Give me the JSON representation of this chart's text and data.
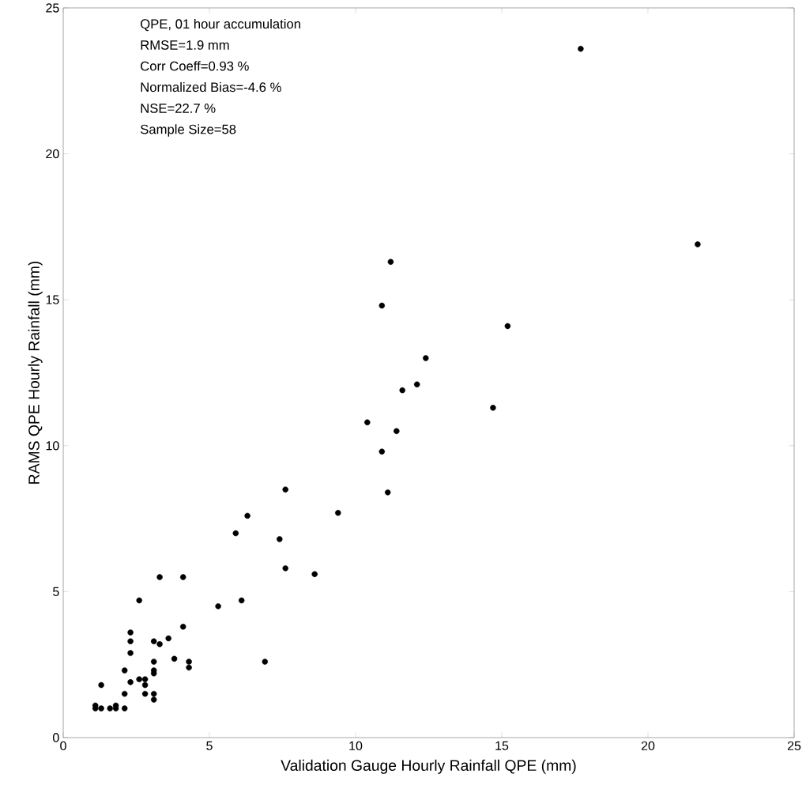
{
  "chart_data": {
    "type": "scatter",
    "xlabel": "Validation Gauge Hourly Rainfall QPE (mm)",
    "ylabel": "RAMS QPE Hourly Rainfall (mm)",
    "annotations": [
      "QPE, 01 hour accumulation",
      "RMSE=1.9 mm",
      "Corr Coeff=0.93 %",
      "Normalized Bias=-4.6 %",
      "NSE=22.7 %",
      "Sample Size=58"
    ],
    "x": [
      17.7,
      21.7,
      11.2,
      10.9,
      15.2,
      12.4,
      12.1,
      11.6,
      14.7,
      10.4,
      11.4,
      10.9,
      7.6,
      11.1,
      6.3,
      5.9,
      9.4,
      7.4,
      7.6,
      8.6,
      6.1,
      3.3,
      4.1,
      2.6,
      5.3,
      4.1,
      2.3,
      2.3,
      3.6,
      3.1,
      3.3,
      2.3,
      3.8,
      3.1,
      4.3,
      4.3,
      6.9,
      2.1,
      3.1,
      3.1,
      1.3,
      2.3,
      2.6,
      2.8,
      2.8,
      2.1,
      2.8,
      3.1,
      3.1,
      1.1,
      1.1,
      1.3,
      1.6,
      1.8,
      1.8,
      2.1
    ],
    "values": [
      23.6,
      16.9,
      16.3,
      14.8,
      14.1,
      13.0,
      12.1,
      11.9,
      11.3,
      10.8,
      10.5,
      9.8,
      8.5,
      8.4,
      7.6,
      7.0,
      7.7,
      6.8,
      5.8,
      5.6,
      4.7,
      5.5,
      5.5,
      4.7,
      4.5,
      3.8,
      3.6,
      3.3,
      3.4,
      3.3,
      3.2,
      2.9,
      2.7,
      2.6,
      2.6,
      2.4,
      2.6,
      2.3,
      2.3,
      2.2,
      1.8,
      1.9,
      2.0,
      2.0,
      1.8,
      1.5,
      1.5,
      1.5,
      1.3,
      1.1,
      1.0,
      1.0,
      1.0,
      1.1,
      1.0,
      1.0
    ],
    "color": "#000000",
    "marker": "circle",
    "grid": false,
    "xlim": [
      0,
      25
    ],
    "ylim": [
      0,
      25
    ],
    "xticks": [
      0,
      5,
      10,
      15,
      20,
      25
    ],
    "yticks": [
      0,
      5,
      10,
      15,
      20,
      25
    ]
  }
}
